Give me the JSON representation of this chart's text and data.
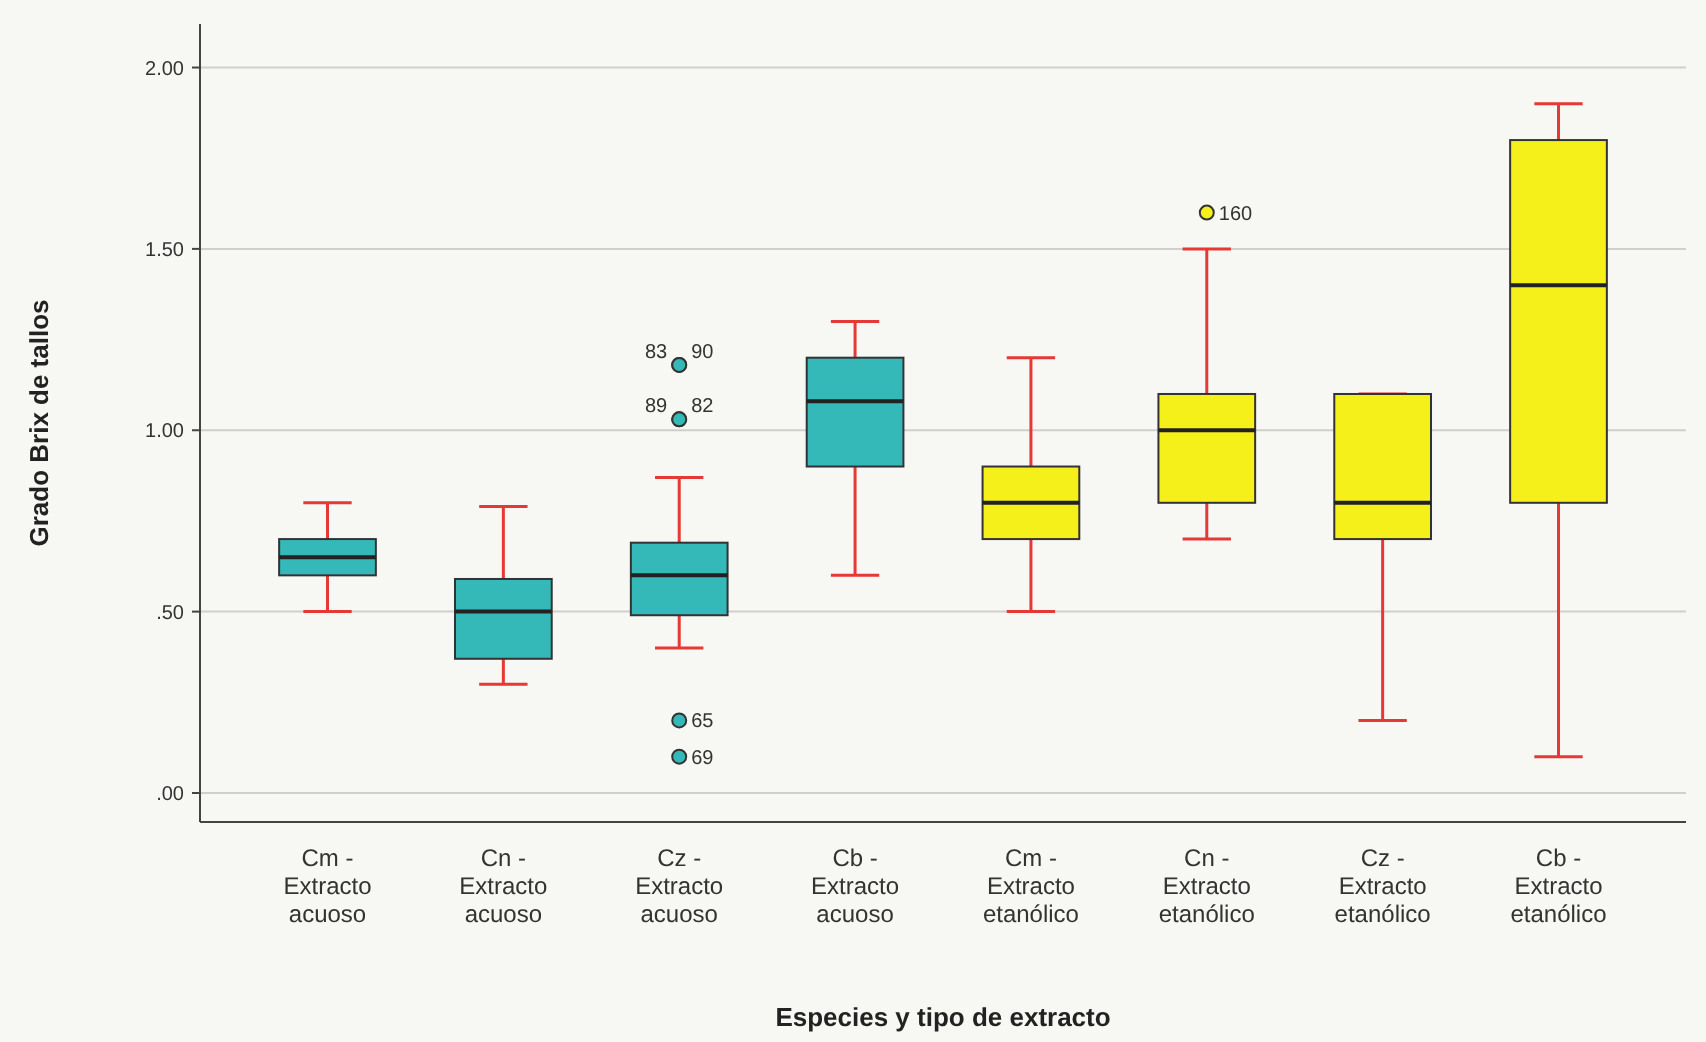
{
  "chart_data": {
    "type": "box",
    "xlabel": "Especies y tipo de extracto",
    "ylabel": "Grado Brix de tallos",
    "categories": [
      "Cm -\nExtracto\nacuoso",
      "Cn -\nExtracto\nacuoso",
      "Cz -\nExtracto\nacuoso",
      "Cb -\nExtracto\nacuoso",
      "Cm -\nExtracto\netanólico",
      "Cn -\nExtracto\netanólico",
      "Cz -\nExtracto\netanólico",
      "Cb -\nExtracto\netanólico"
    ],
    "boxes": [
      {
        "low": 0.5,
        "q1": 0.6,
        "median": 0.65,
        "q3": 0.7,
        "high": 0.8
      },
      {
        "low": 0.3,
        "q1": 0.37,
        "median": 0.5,
        "q3": 0.59,
        "high": 0.79
      },
      {
        "low": 0.4,
        "q1": 0.49,
        "median": 0.6,
        "q3": 0.69,
        "high": 0.87,
        "outliers": [
          1.18,
          1.18,
          1.03,
          1.03,
          0.2,
          0.1
        ]
      },
      {
        "low": 0.6,
        "q1": 0.9,
        "median": 1.08,
        "q3": 1.2,
        "high": 1.3
      },
      {
        "low": 0.5,
        "q1": 0.7,
        "median": 0.8,
        "q3": 0.9,
        "high": 1.2
      },
      {
        "low": 0.7,
        "q1": 0.8,
        "median": 1.0,
        "q3": 1.1,
        "high": 1.5,
        "outliers": [
          1.6
        ]
      },
      {
        "low": 0.2,
        "q1": 0.7,
        "median": 0.8,
        "q3": 1.1,
        "high": 1.1
      },
      {
        "low": 0.1,
        "q1": 0.8,
        "median": 1.4,
        "q3": 1.8,
        "high": 1.9
      }
    ],
    "colors": [
      "#35b8b8",
      "#35b8b8",
      "#35b8b8",
      "#35b8b8",
      "#f5ef1a",
      "#f5ef1a",
      "#f5ef1a",
      "#f5ef1a"
    ],
    "ylim": [
      -0.08,
      2.12
    ],
    "yticks": [
      {
        "value": 0,
        "label": ".00"
      },
      {
        "value": 0.5,
        "label": ".50"
      },
      {
        "value": 1,
        "label": "1.00"
      },
      {
        "value": 1.5,
        "label": "1.50"
      },
      {
        "value": 2,
        "label": "2.00"
      }
    ],
    "grid": "y",
    "annotations": [
      "83",
      "90",
      "89",
      "82",
      "65",
      "69",
      "160"
    ]
  }
}
